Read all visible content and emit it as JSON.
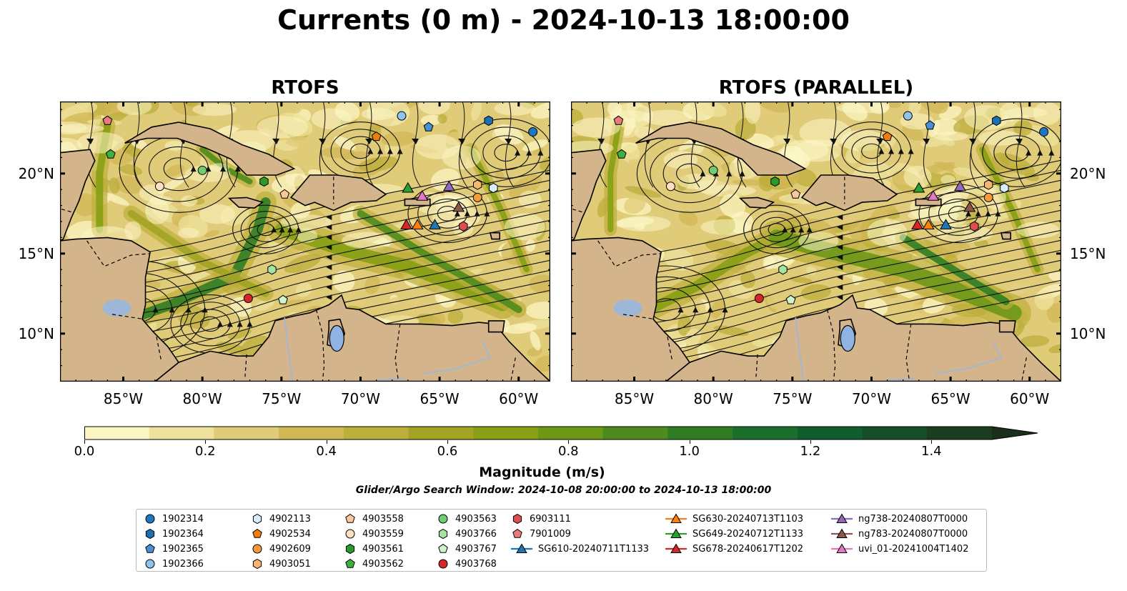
{
  "title": "Currents (0 m) - 2024-10-13 18:00:00",
  "panels": [
    {
      "title": "RTOFS"
    },
    {
      "title": "RTOFS (PARALLEL)"
    }
  ],
  "map_extent": {
    "lon": [
      -89,
      -58
    ],
    "lat": [
      7,
      24.5
    ]
  },
  "lat_ticks": [
    {
      "lat": 20,
      "label": "20°N"
    },
    {
      "lat": 15,
      "label": "15°N"
    },
    {
      "lat": 10,
      "label": "10°N"
    }
  ],
  "lon_ticks": [
    {
      "lon": -85,
      "label": "85°W"
    },
    {
      "lon": -80,
      "label": "80°W"
    },
    {
      "lon": -75,
      "label": "75°W"
    },
    {
      "lon": -70,
      "label": "70°W"
    },
    {
      "lon": -65,
      "label": "65°W"
    },
    {
      "lon": -60,
      "label": "60°W"
    }
  ],
  "colorbar": {
    "label": "Magnitude (m/s)",
    "range": [
      0.0,
      1.5
    ],
    "extend": "max",
    "colors": [
      "#fcf6c4",
      "#eee19b",
      "#e0cb78",
      "#d2b755",
      "#bcae3b",
      "#a1a424",
      "#87a014",
      "#6d9717",
      "#4e8b1e",
      "#2f7d23",
      "#196f2b",
      "#115e2d",
      "#154d28",
      "#1a3d22",
      "#1b2e1a"
    ],
    "ticks": [
      {
        "value": 0.0,
        "label": "0.0"
      },
      {
        "value": 0.2,
        "label": "0.2"
      },
      {
        "value": 0.4,
        "label": "0.4"
      },
      {
        "value": 0.6,
        "label": "0.6"
      },
      {
        "value": 0.8,
        "label": "0.8"
      },
      {
        "value": 1.0,
        "label": "1.0"
      },
      {
        "value": 1.2,
        "label": "1.2"
      },
      {
        "value": 1.4,
        "label": "1.4"
      }
    ]
  },
  "search_window": "Glider/Argo Search Window: 2024-10-08 20:00:00 to 2024-10-13 18:00:00",
  "legend": [
    {
      "label": "1902314",
      "marker": "circle",
      "color": "#1f77c4"
    },
    {
      "label": "1902364",
      "marker": "hexagon",
      "color": "#1f6fb4"
    },
    {
      "label": "1902365",
      "marker": "pentagon",
      "color": "#4a90d0"
    },
    {
      "label": "1902366",
      "marker": "circle",
      "color": "#8ec3ea"
    },
    {
      "label": "4902113",
      "marker": "hexagon",
      "color": "#d8ecfb"
    },
    {
      "label": "4902534",
      "marker": "pentagon",
      "color": "#f07d0e"
    },
    {
      "label": "4902609",
      "marker": "circle",
      "color": "#f59a3a"
    },
    {
      "label": "4903051",
      "marker": "hexagon",
      "color": "#f8b56e"
    },
    {
      "label": "4903558",
      "marker": "pentagon",
      "color": "#f9c79e"
    },
    {
      "label": "4903559",
      "marker": "circle",
      "color": "#fde0c2"
    },
    {
      "label": "4903561",
      "marker": "hexagon",
      "color": "#2a9b2a"
    },
    {
      "label": "4903562",
      "marker": "pentagon",
      "color": "#3fb03f"
    },
    {
      "label": "4903563",
      "marker": "circle",
      "color": "#6fcd6f"
    },
    {
      "label": "4903766",
      "marker": "hexagon",
      "color": "#a7e3a0"
    },
    {
      "label": "4903767",
      "marker": "pentagon",
      "color": "#d1f3cc"
    },
    {
      "label": "4903768",
      "marker": "circle",
      "color": "#d62728"
    },
    {
      "label": "6903111",
      "marker": "hexagon",
      "color": "#dd4d4e"
    },
    {
      "label": "7901009",
      "marker": "pentagon",
      "color": "#ea7b7c"
    },
    {
      "label": "SG610-20240711T1133",
      "marker": "triangle-line",
      "color": "#1f77b4"
    },
    {
      "label": "SG630-20240713T1103",
      "marker": "triangle-line",
      "color": "#ff7f0e"
    },
    {
      "label": "SG649-20240712T1133",
      "marker": "triangle-line",
      "color": "#2ca02c"
    },
    {
      "label": "SG678-20240617T1202",
      "marker": "triangle-line",
      "color": "#d62728"
    },
    {
      "label": "ng738-20240807T0000",
      "marker": "triangle-line",
      "color": "#9467bd"
    },
    {
      "label": "ng783-20240807T0000",
      "marker": "triangle-line",
      "color": "#8c564b"
    },
    {
      "label": "uvi_01-20241004T1402",
      "marker": "triangle-line",
      "color": "#e377c2"
    }
  ],
  "floats_left": [
    {
      "id": "1902314",
      "lon": -59.1,
      "lat": 22.6
    },
    {
      "id": "1902364",
      "lon": -61.9,
      "lat": 23.3
    },
    {
      "id": "1902365",
      "lon": -65.7,
      "lat": 22.9
    },
    {
      "id": "1902366",
      "lon": -67.4,
      "lat": 23.6
    },
    {
      "id": "4902113",
      "lon": -61.6,
      "lat": 19.1
    },
    {
      "id": "4902534",
      "lon": -69.0,
      "lat": 22.3
    },
    {
      "id": "4902609",
      "lon": -62.6,
      "lat": 18.5
    },
    {
      "id": "4903051",
      "lon": -62.6,
      "lat": 19.3
    },
    {
      "id": "4903558",
      "lon": -74.8,
      "lat": 18.7
    },
    {
      "id": "4903559",
      "lon": -82.7,
      "lat": 19.2
    },
    {
      "id": "4903561",
      "lon": -76.1,
      "lat": 19.5
    },
    {
      "id": "4903562",
      "lon": -85.8,
      "lat": 21.2
    },
    {
      "id": "4903563",
      "lon": -80.0,
      "lat": 20.2
    },
    {
      "id": "4903766",
      "lon": -75.6,
      "lat": 14.0
    },
    {
      "id": "4903767",
      "lon": -74.9,
      "lat": 12.1
    },
    {
      "id": "4903768",
      "lon": -77.1,
      "lat": 12.2
    },
    {
      "id": "6903111",
      "lon": -63.5,
      "lat": 16.7
    },
    {
      "id": "7901009",
      "lon": -86.0,
      "lat": 23.3
    }
  ],
  "floats_right": [
    {
      "id": "1902314",
      "lon": -59.1,
      "lat": 22.6
    },
    {
      "id": "1902364",
      "lon": -62.1,
      "lat": 23.3
    },
    {
      "id": "1902365",
      "lon": -66.3,
      "lat": 23.0
    },
    {
      "id": "1902366",
      "lon": -67.7,
      "lat": 23.6
    },
    {
      "id": "4902113",
      "lon": -61.6,
      "lat": 19.1
    },
    {
      "id": "4902534",
      "lon": -69.0,
      "lat": 22.3
    },
    {
      "id": "4902609",
      "lon": -62.6,
      "lat": 18.5
    },
    {
      "id": "4903051",
      "lon": -62.6,
      "lat": 19.3
    },
    {
      "id": "4903558",
      "lon": -74.8,
      "lat": 18.7
    },
    {
      "id": "4903559",
      "lon": -82.7,
      "lat": 19.2
    },
    {
      "id": "4903561",
      "lon": -76.1,
      "lat": 19.5
    },
    {
      "id": "4903562",
      "lon": -85.8,
      "lat": 21.2
    },
    {
      "id": "4903563",
      "lon": -80.0,
      "lat": 20.2
    },
    {
      "id": "4903766",
      "lon": -75.6,
      "lat": 14.0
    },
    {
      "id": "4903767",
      "lon": -75.1,
      "lat": 12.1
    },
    {
      "id": "4903768",
      "lon": -77.1,
      "lat": 12.2
    },
    {
      "id": "6903111",
      "lon": -63.5,
      "lat": 16.7
    },
    {
      "id": "7901009",
      "lon": -86.0,
      "lat": 23.3
    }
  ],
  "gliders": [
    {
      "id": "SG610-20240711T1133",
      "lon": -65.3,
      "lat": 16.8
    },
    {
      "id": "SG630-20240713T1103",
      "lon": -66.4,
      "lat": 16.8
    },
    {
      "id": "SG649-20240712T1133",
      "lon": -67.0,
      "lat": 19.1
    },
    {
      "id": "SG678-20240617T1202",
      "lon": -67.1,
      "lat": 16.8
    },
    {
      "id": "ng738-20240807T0000",
      "lon": -64.4,
      "lat": 19.2
    },
    {
      "id": "ng783-20240807T0000",
      "lon": -63.8,
      "lat": 17.9
    },
    {
      "id": "uvi_01-20241004T1402",
      "lon": -66.1,
      "lat": 18.6
    }
  ]
}
